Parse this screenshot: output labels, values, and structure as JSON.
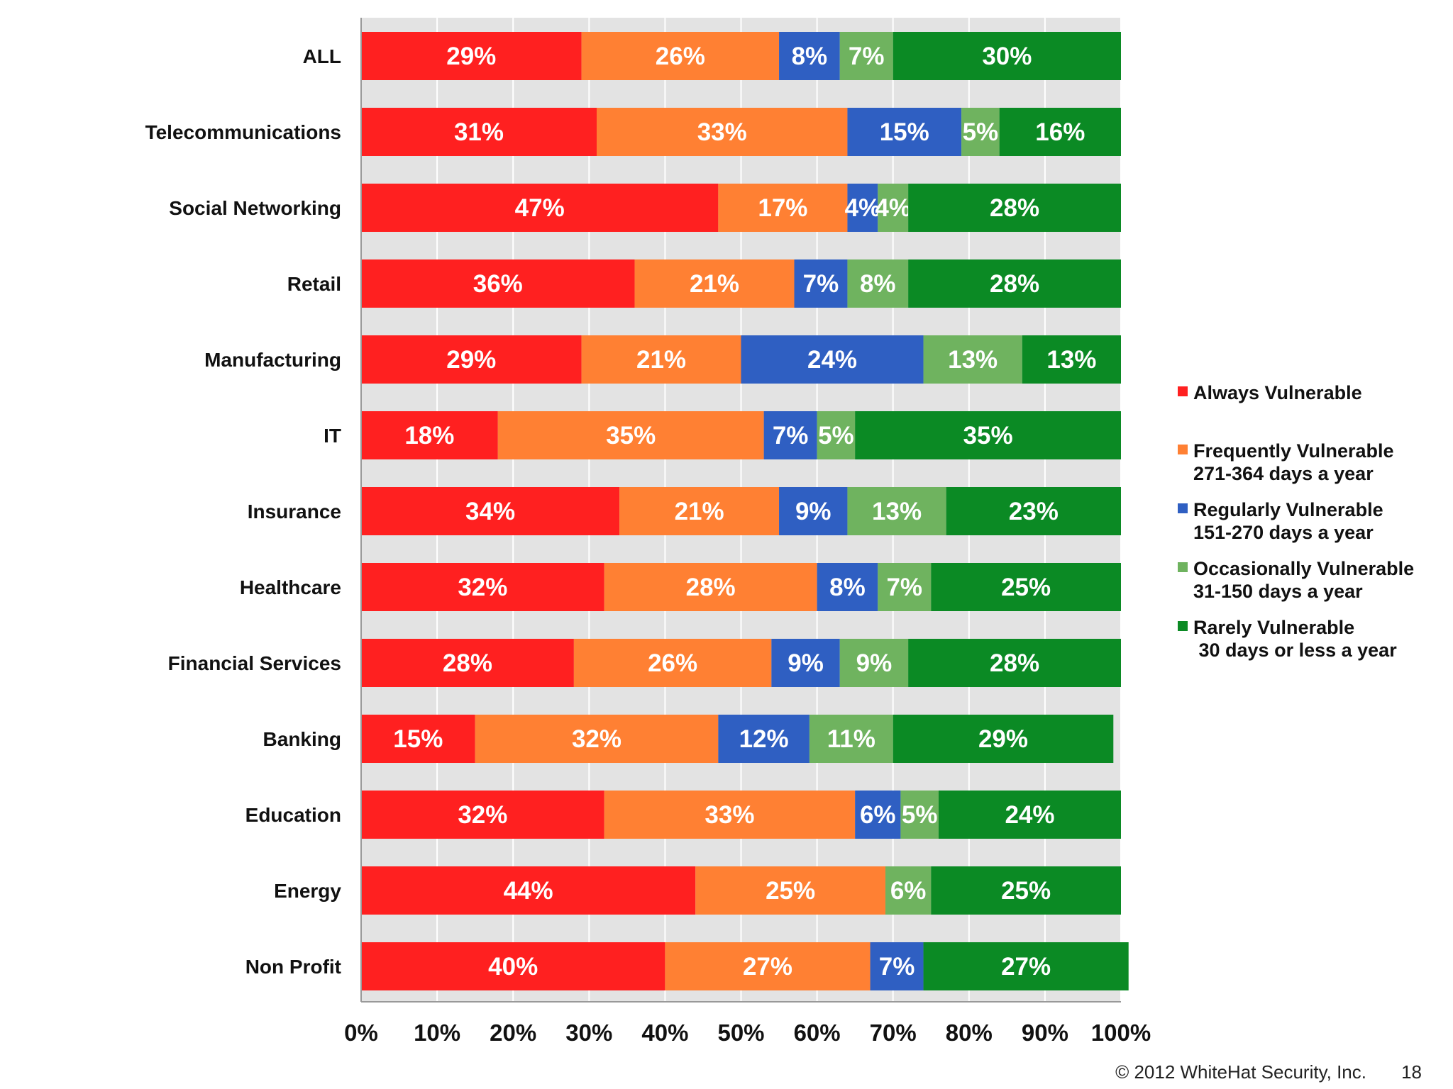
{
  "chart_data": {
    "type": "bar",
    "orientation": "horizontal",
    "stacked": true,
    "categories": [
      "ALL",
      "Telecommunications",
      "Social Networking",
      "Retail",
      "Manufacturing",
      "IT",
      "Insurance",
      "Healthcare",
      "Financial Services",
      "Banking",
      "Education",
      "Energy",
      "Non Profit"
    ],
    "series": [
      {
        "name": "Always Vulnerable",
        "color": "#ff2020",
        "values": [
          29,
          31,
          47,
          36,
          29,
          18,
          34,
          32,
          28,
          15,
          32,
          44,
          40
        ]
      },
      {
        "name": "Frequently Vulnerable\n271-364 days a year",
        "color": "#ff8033",
        "values": [
          26,
          33,
          17,
          21,
          21,
          35,
          21,
          28,
          26,
          32,
          33,
          25,
          27
        ]
      },
      {
        "name": "Regularly Vulnerable\n151-270 days a year",
        "color": "#2f5fc2",
        "values": [
          8,
          15,
          4,
          7,
          24,
          7,
          9,
          8,
          9,
          12,
          6,
          0,
          7
        ]
      },
      {
        "name": "Occasionally Vulnerable\n31-150 days a year",
        "color": "#6fb35f",
        "values": [
          7,
          5,
          4,
          8,
          13,
          5,
          13,
          7,
          9,
          11,
          5,
          6,
          0
        ]
      },
      {
        "name": "Rarely Vulnerable\n 30 days or less a year",
        "color": "#0b8a24",
        "values": [
          30,
          16,
          28,
          28,
          13,
          35,
          23,
          25,
          28,
          29,
          24,
          25,
          27
        ]
      }
    ],
    "xlim": [
      0,
      100
    ],
    "xticks": [
      "0%",
      "10%",
      "20%",
      "30%",
      "40%",
      "50%",
      "60%",
      "70%",
      "80%",
      "90%",
      "100%"
    ],
    "value_suffix": "%",
    "grid": true,
    "legend_position": "right"
  },
  "footer": {
    "copyright": "© 2012 WhiteHat Security, Inc.",
    "page_number": "18"
  }
}
